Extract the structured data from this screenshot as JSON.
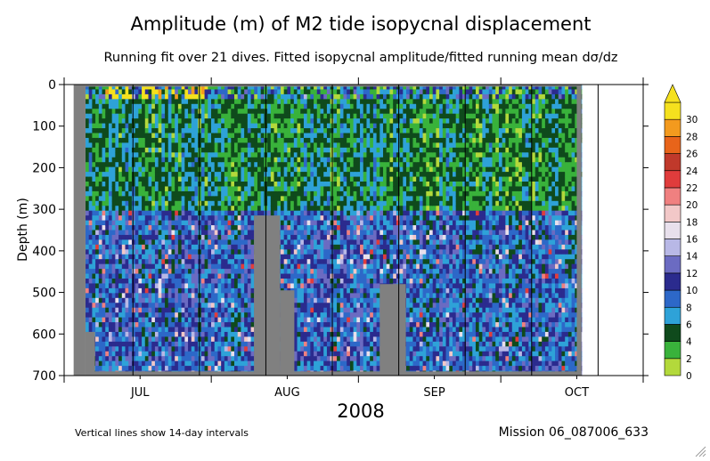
{
  "chart_data": {
    "type": "heatmap",
    "title": "Amplitude (m) of M2 tide isopycnal displacement",
    "subtitle": "Running fit over 21 dives. Fitted isopycnal amplitude/fitted running mean dσ/dz",
    "ylabel": "Depth (m)",
    "xlabel": "2008",
    "ylim": [
      0,
      700
    ],
    "y_reversed": true,
    "y_ticks": [
      "0",
      "100",
      "200",
      "300",
      "400",
      "500",
      "600",
      "700"
    ],
    "x_ticks": [
      {
        "label": "JUL",
        "day": 16
      },
      {
        "label": "AUG",
        "day": 47
      },
      {
        "label": "SEP",
        "day": 78
      },
      {
        "label": "OCT",
        "day": 108
      }
    ],
    "x_range_days": [
      0,
      122
    ],
    "x_month_boundaries_days": [
      0,
      31,
      62,
      92,
      122
    ],
    "x_data_extent_days": [
      4.5,
      109
    ],
    "interval_lines_days": [
      14.5,
      28.5,
      42.5,
      56.5,
      70.5,
      84.5,
      98.5,
      112.5
    ],
    "colorbar": {
      "levels": [
        0,
        2,
        4,
        6,
        8,
        10,
        12,
        14,
        16,
        18,
        20,
        22,
        24,
        26,
        28,
        30
      ],
      "labels": [
        "0",
        "2",
        "4",
        "6",
        "8",
        "10",
        "12",
        "14",
        "16",
        "18",
        "20",
        "22",
        "24",
        "26",
        "28",
        "30"
      ],
      "colors": [
        "#b3d93b",
        "#39b23b",
        "#0f4a1c",
        "#2ea2d8",
        "#2d68c8",
        "#2b2b8e",
        "#6b6bc2",
        "#b8b8e6",
        "#e8e0ec",
        "#f2c8c8",
        "#f08080",
        "#e03c3c",
        "#c0392b",
        "#e8641a",
        "#f39a1e",
        "#f5e11e"
      ],
      "overflow_color": "#f5e11e"
    },
    "missing_color": "#808080",
    "bathymetry_gaps": [
      {
        "day_start": 4.5,
        "day_end": 6.5,
        "depth_top": 595
      },
      {
        "day_start": 40,
        "day_end": 45.5,
        "depth_top": 315
      },
      {
        "day_start": 45.5,
        "day_end": 48.5,
        "depth_top": 495
      },
      {
        "day_start": 66.5,
        "day_end": 72,
        "depth_top": 480
      }
    ],
    "dominant_classes_by_depth": [
      {
        "depth": [
          0,
          40
        ],
        "note": "scattered high values up to 30 near surface early July"
      },
      {
        "depth": [
          40,
          300
        ],
        "classes": [
          1,
          2,
          3
        ]
      },
      {
        "depth": [
          300,
          700
        ],
        "classes": [
          3,
          4,
          5,
          6,
          7,
          8
        ]
      }
    ]
  },
  "notes": {
    "interval_note": "Vertical lines show 14-day intervals",
    "mission": "Mission 06_087006_633"
  },
  "icons": {
    "resize": "resize-grip-icon"
  }
}
